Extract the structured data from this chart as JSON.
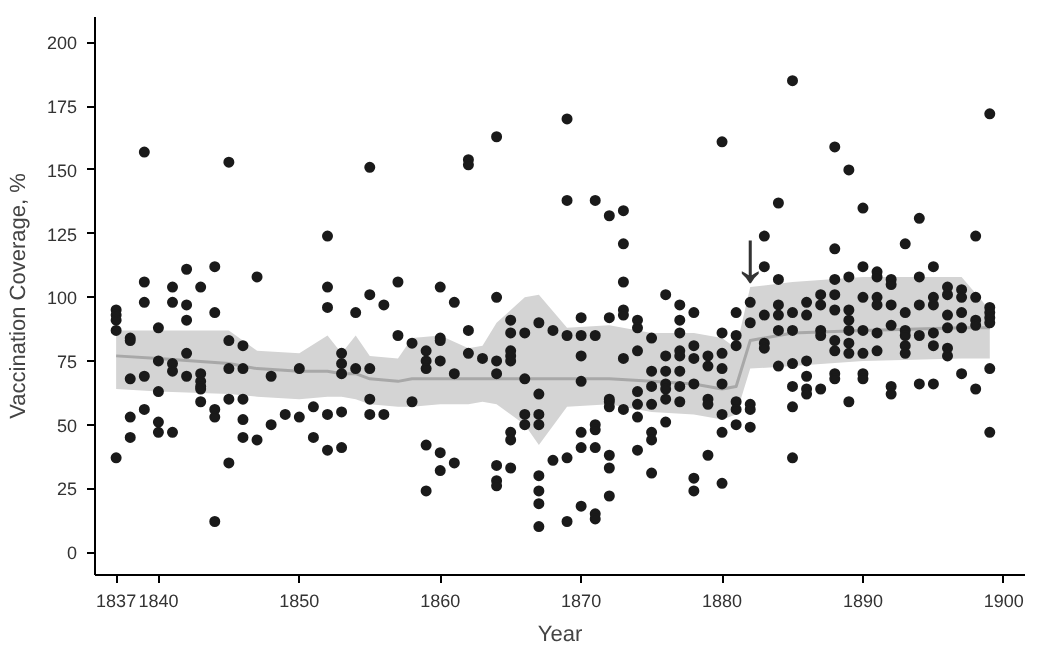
{
  "chart_data": {
    "type": "scatter",
    "xlabel": "Year",
    "ylabel": "Vaccination Coverage, %",
    "xlim": [
      1835.5,
      1901.5
    ],
    "ylim": [
      -9,
      210
    ],
    "xticks": [
      1837,
      1840,
      1850,
      1860,
      1870,
      1880,
      1890,
      1900
    ],
    "yticks": [
      0,
      25,
      50,
      75,
      100,
      125,
      150,
      175,
      200
    ],
    "grid": false,
    "annotations": [
      {
        "text": "↓",
        "x": 1882,
        "y": 100
      }
    ],
    "series": [
      {
        "type": "line",
        "color": "#a8a8a8",
        "x": [
          1837,
          1840,
          1845,
          1847,
          1850,
          1852,
          1853,
          1854,
          1855,
          1857,
          1858,
          1860,
          1862,
          1863,
          1864,
          1866,
          1867,
          1869,
          1872,
          1875,
          1878,
          1880,
          1881,
          1882,
          1885,
          1890,
          1897,
          1899
        ],
        "values": [
          77,
          76,
          74,
          72,
          71,
          71,
          70,
          70,
          68,
          67,
          68,
          68,
          68,
          68,
          68,
          68,
          68,
          68,
          68,
          67,
          66,
          64,
          65,
          83,
          86,
          87,
          88,
          88
        ],
        "lower": [
          64,
          63,
          62,
          61,
          60,
          61,
          61,
          60,
          58,
          57,
          57,
          58,
          58,
          59,
          58,
          50,
          42,
          57,
          58,
          55,
          54,
          52,
          54,
          72,
          73,
          75,
          76,
          76
        ],
        "upper": [
          87,
          87,
          87,
          79,
          78,
          85,
          78,
          85,
          77,
          76,
          84,
          85,
          80,
          81,
          90,
          100,
          101,
          88,
          89,
          86,
          86,
          84,
          80,
          104,
          106,
          108,
          108,
          95
        ]
      },
      {
        "color": "#1a1a1a",
        "marker": "circle",
        "x": [
          1839,
          1845,
          1855,
          1852,
          1847,
          1839,
          1842,
          1844,
          1841,
          1843,
          1839,
          1841,
          1842,
          1842,
          1844,
          1837,
          1837,
          1837,
          1837,
          1852,
          1852,
          1855,
          1854,
          1856,
          1857,
          1857,
          1858,
          1840,
          1838,
          1838,
          1845,
          1846,
          1842,
          1838,
          1839,
          1840,
          1841,
          1841,
          1842,
          1843,
          1843,
          1843,
          1843,
          1845,
          1846,
          1848,
          1850,
          1853,
          1853,
          1853,
          1854,
          1855,
          1840,
          1839,
          1838,
          1838,
          1840,
          1840,
          1841,
          1843,
          1844,
          1844,
          1845,
          1846,
          1846,
          1846,
          1847,
          1848,
          1849,
          1850,
          1851,
          1851,
          1852,
          1853,
          1852,
          1853,
          1855,
          1855,
          1856,
          1858,
          1837,
          1845,
          1844,
          1864,
          1869,
          1862,
          1862,
          1869,
          1871,
          1872,
          1873,
          1873,
          1873,
          1873,
          1873,
          1860,
          1861,
          1864,
          1859,
          1859,
          1859,
          1860,
          1860,
          1860,
          1861,
          1862,
          1862,
          1863,
          1864,
          1864,
          1865,
          1865,
          1865,
          1865,
          1865,
          1866,
          1866,
          1867,
          1867,
          1867,
          1867,
          1868,
          1868,
          1869,
          1869,
          1870,
          1870,
          1870,
          1870,
          1870,
          1870,
          1871,
          1871,
          1871,
          1871,
          1871,
          1871,
          1872,
          1872,
          1872,
          1872,
          1872,
          1872,
          1872,
          1873,
          1873,
          1874,
          1874,
          1874,
          1874,
          1874,
          1874,
          1874,
          1875,
          1875,
          1875,
          1875,
          1875,
          1875,
          1875,
          1876,
          1876,
          1876,
          1876,
          1876,
          1876,
          1876,
          1877,
          1877,
          1877,
          1877,
          1877,
          1877,
          1877,
          1877,
          1878,
          1878,
          1878,
          1878,
          1878,
          1878,
          1879,
          1879,
          1879,
          1879,
          1879,
          1867,
          1867,
          1867,
          1867,
          1869,
          1870,
          1859,
          1859,
          1860,
          1860,
          1861,
          1864,
          1864,
          1864,
          1865,
          1865,
          1865,
          1866,
          1866,
          1880,
          1888,
          1889,
          1884,
          1890,
          1894,
          1883,
          1883,
          1888,
          1893,
          1898,
          1884,
          1890,
          1891,
          1891,
          1892,
          1892,
          1894,
          1895,
          1896,
          1896,
          1897,
          1897,
          1898,
          1888,
          1889,
          1888,
          1882,
          1882,
          1881,
          1880,
          1881,
          1881,
          1883,
          1883,
          1883,
          1884,
          1884,
          1884,
          1884,
          1885,
          1885,
          1885,
          1885,
          1885,
          1886,
          1886,
          1886,
          1886,
          1886,
          1886,
          1887,
          1887,
          1887,
          1887,
          1887,
          1888,
          1888,
          1888,
          1888,
          1888,
          1889,
          1889,
          1889,
          1889,
          1889,
          1889,
          1890,
          1890,
          1890,
          1890,
          1890,
          1891,
          1891,
          1891,
          1891,
          1892,
          1892,
          1892,
          1892,
          1893,
          1893,
          1893,
          1893,
          1893,
          1894,
          1894,
          1894,
          1895,
          1895,
          1895,
          1895,
          1895,
          1896,
          1896,
          1896,
          1896,
          1897,
          1897,
          1897,
          1898,
          1898,
          1898,
          1899,
          1899,
          1899,
          1899,
          1899,
          1899,
          1880,
          1880,
          1880,
          1880,
          1880,
          1880,
          1881,
          1881,
          1881,
          1882,
          1882,
          1882,
          1885,
          1885,
          1899
        ],
        "values": [
          157,
          153,
          151,
          124,
          108,
          106,
          111,
          112,
          104,
          104,
          98,
          98,
          97,
          91,
          94,
          95,
          93,
          91,
          87,
          104,
          96,
          101,
          94,
          97,
          106,
          85,
          82,
          88,
          84,
          83,
          83,
          81,
          78,
          68,
          69,
          75,
          74,
          71,
          69,
          70,
          67,
          65,
          64,
          72,
          72,
          69,
          72,
          78,
          74,
          70,
          72,
          72,
          63,
          56,
          53,
          45,
          51,
          47,
          47,
          59,
          56,
          53,
          60,
          60,
          52,
          45,
          44,
          50,
          54,
          53,
          57,
          45,
          54,
          55,
          40,
          41,
          60,
          54,
          54,
          59,
          37,
          35,
          12,
          163,
          170,
          154,
          152,
          138,
          138,
          132,
          134,
          121,
          106,
          95,
          93,
          104,
          98,
          100,
          79,
          75,
          72,
          84,
          83,
          75,
          70,
          87,
          78,
          76,
          75,
          70,
          91,
          86,
          79,
          77,
          75,
          86,
          68,
          90,
          62,
          54,
          50,
          87,
          36,
          85,
          37,
          92,
          85,
          77,
          67,
          47,
          41,
          85,
          50,
          48,
          41,
          15,
          13,
          92,
          60,
          59,
          57,
          38,
          33,
          22,
          76,
          56,
          91,
          88,
          79,
          63,
          58,
          53,
          40,
          84,
          71,
          65,
          58,
          47,
          44,
          31,
          101,
          77,
          71,
          66,
          64,
          60,
          51,
          97,
          91,
          86,
          79,
          77,
          71,
          65,
          59,
          94,
          81,
          76,
          66,
          29,
          24,
          77,
          73,
          60,
          58,
          38,
          30,
          24,
          19,
          10,
          12,
          18,
          42,
          24,
          39,
          32,
          35,
          34,
          28,
          26,
          33,
          47,
          44,
          54,
          50,
          161,
          159,
          150,
          137,
          135,
          131,
          124,
          112,
          119,
          121,
          124,
          107,
          112,
          110,
          108,
          107,
          105,
          108,
          112,
          104,
          101,
          103,
          100,
          100,
          107,
          108,
          101,
          98,
          90,
          94,
          86,
          85,
          81,
          93,
          82,
          80,
          97,
          93,
          87,
          73,
          94,
          87,
          74,
          65,
          57,
          98,
          93,
          75,
          69,
          64,
          62,
          101,
          97,
          87,
          85,
          64,
          95,
          83,
          79,
          70,
          68,
          95,
          91,
          87,
          82,
          78,
          59,
          100,
          87,
          78,
          70,
          68,
          100,
          97,
          86,
          79,
          97,
          89,
          65,
          62,
          94,
          87,
          85,
          81,
          78,
          97,
          85,
          66,
          100,
          97,
          86,
          81,
          66,
          93,
          88,
          80,
          77,
          94,
          88,
          70,
          91,
          89,
          64,
          96,
          94,
          92,
          90,
          72,
          47,
          66,
          54,
          47,
          27,
          78,
          72,
          59,
          56,
          50,
          58,
          56,
          49,
          37,
          185,
          172
        ]
      }
    ]
  }
}
